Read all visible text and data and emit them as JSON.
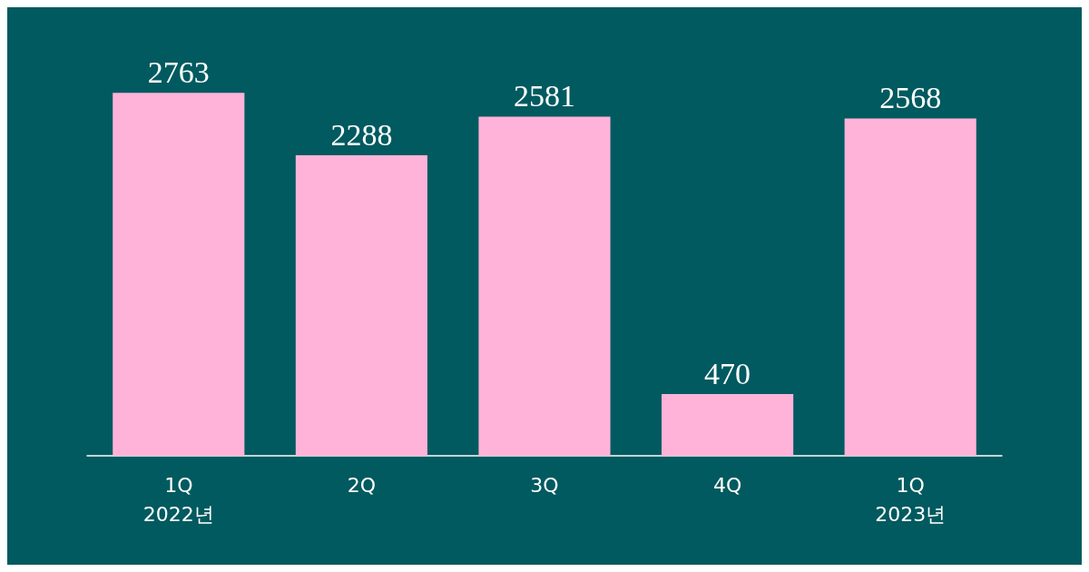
{
  "chart_data": {
    "type": "bar",
    "categories": [
      "1Q\n2022년",
      "2Q",
      "3Q",
      "4Q",
      "1Q\n2023년"
    ],
    "values": [
      2763,
      2288,
      2581,
      470,
      2568
    ],
    "color": "#ffb3d9",
    "data_labels": true
  }
}
